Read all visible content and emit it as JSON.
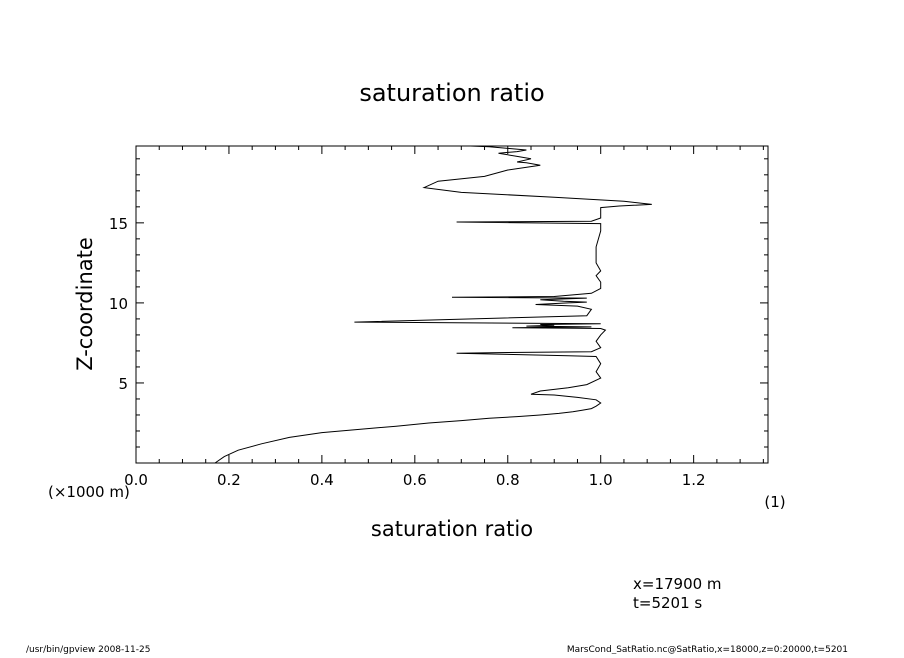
{
  "chart_data": {
    "type": "line",
    "title": "saturation ratio",
    "xlabel": "saturation ratio",
    "x_unit": "(1)",
    "ylabel": "Z-coordinate",
    "y_unit": "(×1000 m)",
    "xlim": [
      0.0,
      1.36
    ],
    "ylim": [
      0.0,
      19.8
    ],
    "x_ticks": [
      "0.0",
      "0.2",
      "0.4",
      "0.6",
      "0.8",
      "1.0",
      "1.2"
    ],
    "y_ticks": [
      "5",
      "10",
      "15"
    ],
    "grid": false,
    "series": [
      {
        "x": [
          0.17,
          0.19,
          0.22,
          0.27,
          0.33,
          0.4,
          0.48,
          0.56,
          0.63,
          0.7,
          0.76,
          0.82,
          0.87,
          0.91,
          0.94,
          0.96,
          0.98,
          0.99,
          1.0,
          0.99,
          0.95,
          0.9,
          0.85,
          0.87,
          0.93,
          0.97,
          1.0,
          0.99,
          1.0,
          0.99,
          0.93,
          0.69,
          0.8,
          0.98,
          1.0,
          0.99,
          1.0,
          1.01,
          1.0,
          0.95,
          0.81,
          0.98,
          0.84,
          0.9,
          0.87,
          1.0,
          0.47,
          0.97,
          0.98,
          0.95,
          0.86,
          0.93,
          0.97,
          0.92,
          0.87,
          0.97,
          0.68,
          0.9,
          0.98,
          1.0,
          1.0,
          0.99,
          1.0,
          0.99,
          0.99,
          1.0,
          1.0,
          0.69,
          0.98,
          1.0,
          1.0,
          1.0,
          1.04,
          1.11,
          1.05,
          0.9,
          0.7,
          0.62,
          0.65,
          0.75,
          0.8,
          0.87,
          0.84,
          0.82,
          0.85,
          0.82,
          0.8,
          0.78,
          0.82,
          0.84,
          0.8,
          0.76,
          0.72,
          0.69
        ],
        "y": [
          0.0,
          0.4,
          0.8,
          1.2,
          1.6,
          1.9,
          2.1,
          2.3,
          2.5,
          2.65,
          2.8,
          2.9,
          3.0,
          3.1,
          3.2,
          3.3,
          3.4,
          3.55,
          3.75,
          3.95,
          4.1,
          4.25,
          4.3,
          4.5,
          4.7,
          4.9,
          5.3,
          5.7,
          6.2,
          6.65,
          6.7,
          6.85,
          6.9,
          6.95,
          7.2,
          7.6,
          8.0,
          8.3,
          8.4,
          8.42,
          8.45,
          8.5,
          8.55,
          8.6,
          8.65,
          8.7,
          8.8,
          9.2,
          9.6,
          9.8,
          9.9,
          10.0,
          10.05,
          10.1,
          10.2,
          10.3,
          10.35,
          10.4,
          10.6,
          10.9,
          11.3,
          11.7,
          12.0,
          12.5,
          13.5,
          14.5,
          14.95,
          15.05,
          15.1,
          15.3,
          15.8,
          15.95,
          16.05,
          16.15,
          16.35,
          16.6,
          16.9,
          17.2,
          17.6,
          17.9,
          18.3,
          18.6,
          18.75,
          18.8,
          19.0,
          19.15,
          19.25,
          19.35,
          19.45,
          19.55,
          19.65,
          19.75,
          19.8,
          19.8
        ]
      }
    ]
  },
  "annotation": {
    "line1": "x=17900 m",
    "line2": "t=5201 s"
  },
  "footer": {
    "left": "/usr/bin/gpview  2008-11-25",
    "right": "MarsCond_SatRatio.nc@SatRatio,x=18000,z=0:20000,t=5201"
  }
}
